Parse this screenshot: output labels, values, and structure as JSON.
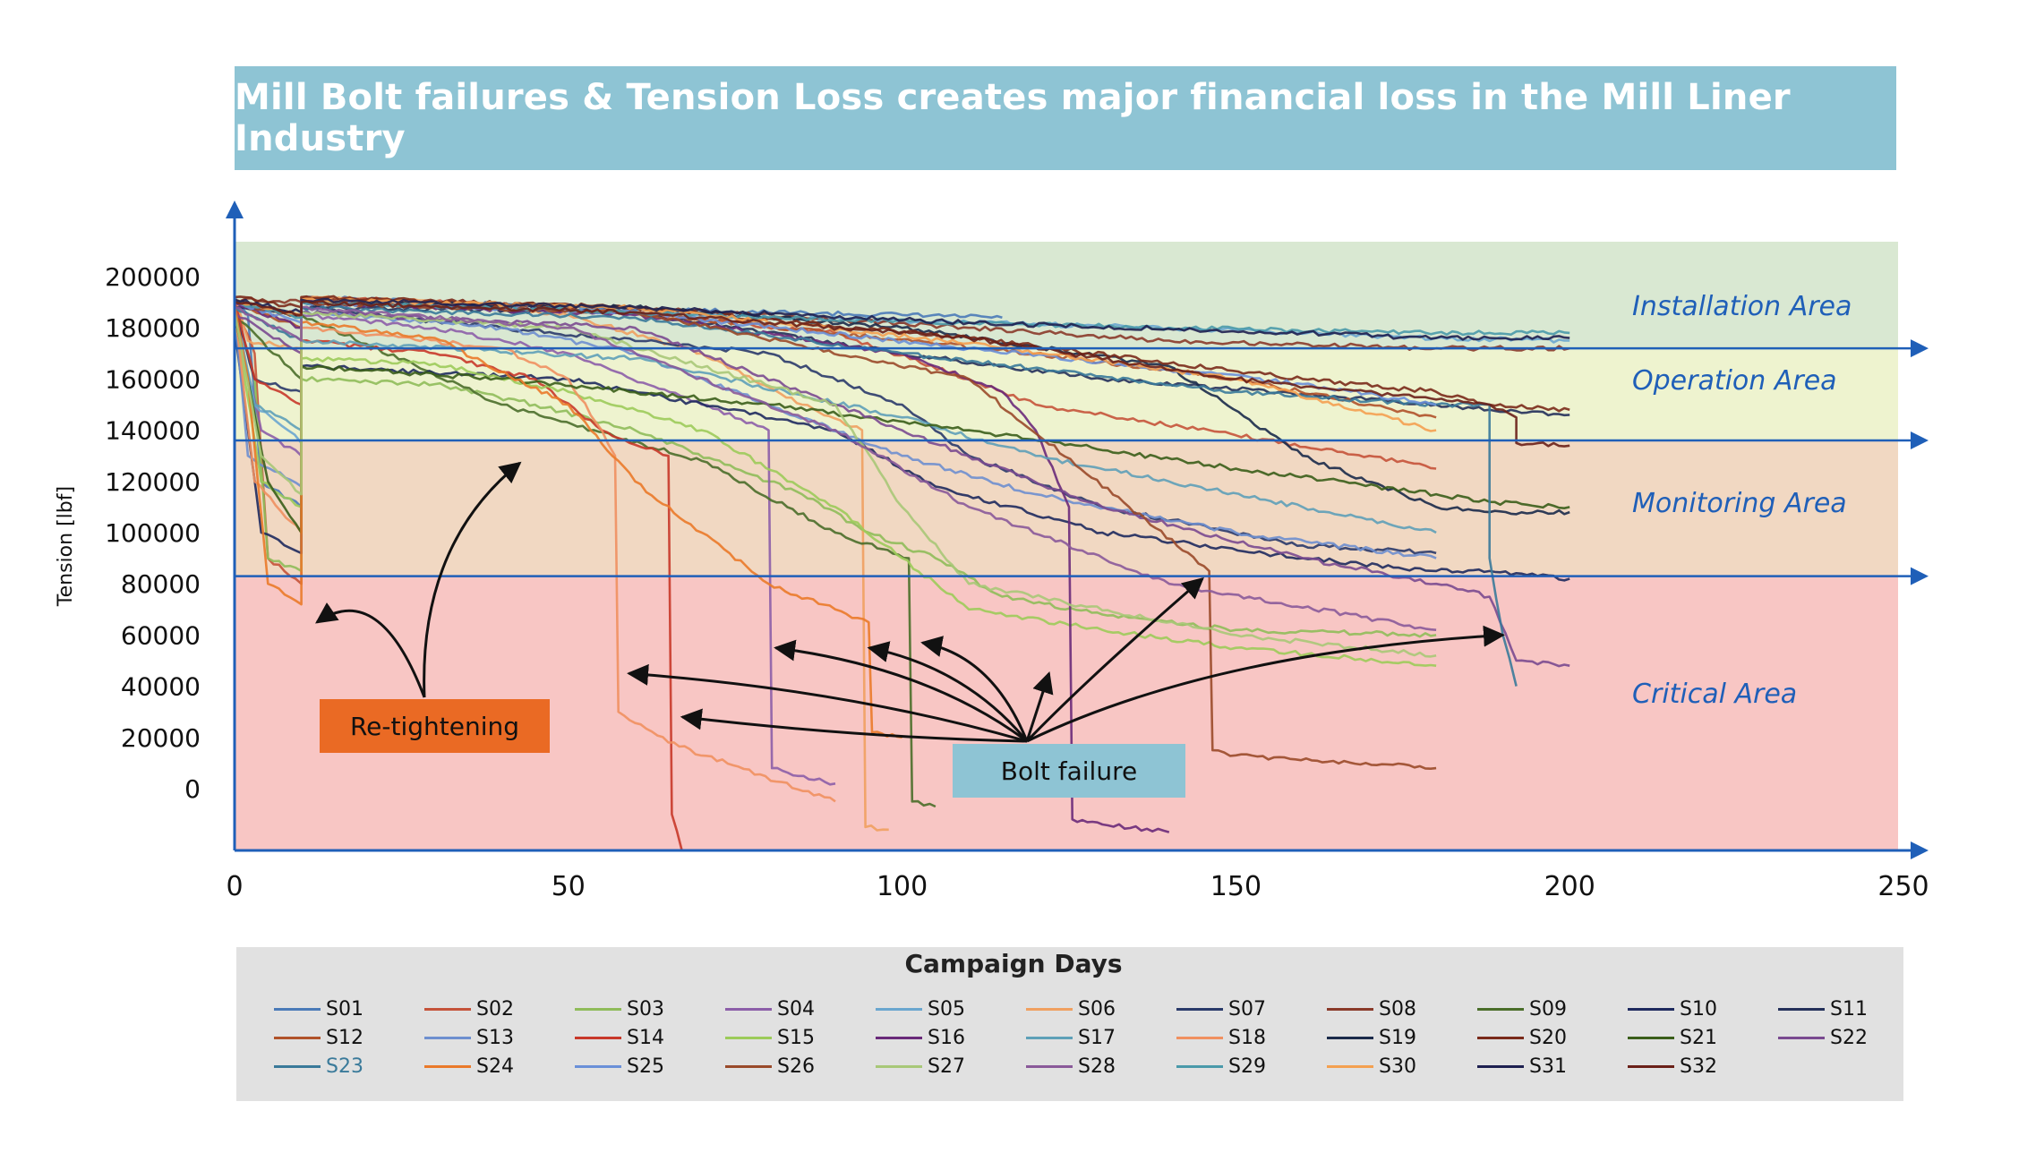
{
  "banner": {
    "title": "Mill Bolt failures & Tension Loss creates major financial loss in the Mill Liner Industry"
  },
  "callouts": {
    "retightening": "Re-tightening",
    "bolt_failure": "Bolt failure"
  },
  "chart_data": {
    "type": "line",
    "title": "Mill Bolt failures & Tension Loss creates major financial loss in the Mill Liner Industry",
    "xlabel": "Campaign Days",
    "ylabel": "Tension [lbf]",
    "xlim": [
      0,
      250
    ],
    "ylim": [
      -25000,
      215000
    ],
    "x_ticks": [
      0,
      50,
      100,
      150,
      200,
      250
    ],
    "x_tick_labels": [
      "0",
      "50",
      "100",
      "150",
      "200",
      "250"
    ],
    "y_ticks": [
      0,
      20000,
      40000,
      60000,
      80000,
      100000,
      120000,
      140000,
      160000,
      180000,
      200000
    ],
    "y_tick_labels": [
      "0",
      "20000",
      "40000",
      "60000",
      "80000",
      "100000",
      "120000",
      "140000",
      "160000",
      "180000",
      "200000"
    ],
    "areas": [
      {
        "name": "Installation Area",
        "from": 172000,
        "to": 215000,
        "color": "#d9e8d2"
      },
      {
        "name": "Operation Area",
        "from": 136000,
        "to": 172000,
        "color": "#eef3cf"
      },
      {
        "name": "Monitoring Area",
        "from": 83000,
        "to": 136000,
        "color": "#f1d8c2"
      },
      {
        "name": "Critical Area",
        "from": -25000,
        "to": 83000,
        "color": "#f8c6c4"
      }
    ],
    "thresholds": [
      172000,
      136000,
      83000
    ],
    "series": [
      {
        "name": "S01",
        "color": "#4a7ab8",
        "x": [
          0,
          2,
          4,
          10,
          10,
          40,
          80,
          100,
          115
        ],
        "y": [
          192000,
          185000,
          120000,
          110000,
          192000,
          189000,
          186000,
          185000,
          184000
        ]
      },
      {
        "name": "S02",
        "color": "#c5533a",
        "x": [
          0,
          3,
          5,
          10,
          10,
          50,
          90,
          110,
          120,
          150,
          170,
          180
        ],
        "y": [
          190000,
          170000,
          90000,
          80000,
          192000,
          188000,
          178000,
          160000,
          150000,
          138000,
          130000,
          125000
        ]
      },
      {
        "name": "S03",
        "color": "#8fbc5a",
        "x": [
          0,
          3,
          5,
          10,
          10,
          30,
          45,
          60,
          75,
          85,
          95,
          105,
          115,
          130,
          150,
          180
        ],
        "y": [
          188000,
          160000,
          90000,
          85000,
          160000,
          158000,
          150000,
          140000,
          125000,
          115000,
          100000,
          90000,
          75000,
          68000,
          62000,
          60000
        ]
      },
      {
        "name": "S04",
        "color": "#8c5ea8",
        "x": [
          0,
          4,
          10,
          10,
          30,
          50,
          70,
          80,
          80.5,
          90
        ],
        "y": [
          185000,
          140000,
          130000,
          185000,
          180000,
          170000,
          150000,
          140000,
          8000,
          2000
        ]
      },
      {
        "name": "S05",
        "color": "#6aa6cf",
        "x": [
          0,
          3,
          8,
          10,
          10,
          60,
          110,
          140,
          180,
          200
        ],
        "y": [
          190000,
          150000,
          140000,
          135000,
          190000,
          186000,
          182000,
          180000,
          176000,
          175000
        ]
      },
      {
        "name": "S06",
        "color": "#f0a060",
        "x": [
          0,
          2,
          10,
          10,
          30,
          50,
          70,
          85,
          94,
          94.5,
          98
        ],
        "y": [
          192000,
          175000,
          172000,
          192000,
          190000,
          185000,
          170000,
          150000,
          140000,
          -15000,
          -16000
        ]
      },
      {
        "name": "S07",
        "color": "#2a3a6a",
        "x": [
          0,
          3,
          10,
          10,
          40,
          80,
          100,
          110,
          130,
          160,
          180
        ],
        "y": [
          188000,
          160000,
          155000,
          188000,
          180000,
          170000,
          150000,
          130000,
          110000,
          95000,
          92000
        ]
      },
      {
        "name": "S08",
        "color": "#8a3a2a",
        "x": [
          0,
          10,
          10,
          60,
          110,
          140,
          180,
          188,
          188,
          200
        ],
        "y": [
          191000,
          190000,
          191000,
          188000,
          180000,
          175000,
          172000,
          172000,
          172000,
          172000
        ]
      },
      {
        "name": "S09",
        "color": "#4a6e2a",
        "x": [
          0,
          10,
          10,
          40,
          70,
          90,
          101,
          101.5,
          105
        ],
        "y": [
          185000,
          160000,
          185000,
          150000,
          128000,
          100000,
          90000,
          -5000,
          -7000
        ]
      },
      {
        "name": "S10",
        "color": "#1e2a5e",
        "x": [
          0,
          4,
          10,
          10,
          50,
          90,
          105,
          130,
          160,
          180,
          188,
          188,
          200
        ],
        "y": [
          180000,
          100000,
          92000,
          165000,
          160000,
          140000,
          118000,
          100000,
          90000,
          85000,
          85000,
          85000,
          82000
        ]
      },
      {
        "name": "S11",
        "color": "#24305a",
        "x": [
          0,
          10,
          10,
          60,
          100,
          130,
          180,
          188,
          188,
          200
        ],
        "y": [
          188000,
          185000,
          188000,
          186000,
          170000,
          160000,
          150000,
          148000,
          148000,
          146000
        ]
      },
      {
        "name": "S12",
        "color": "#b0522a",
        "x": [
          0,
          10,
          10,
          60,
          120,
          150,
          170,
          180
        ],
        "y": [
          190000,
          180000,
          190000,
          186000,
          170000,
          160000,
          150000,
          145000
        ]
      },
      {
        "name": "S13",
        "color": "#6e8fcf",
        "x": [
          0,
          2,
          10,
          10,
          40,
          60,
          80,
          100,
          120,
          150,
          180
        ],
        "y": [
          186000,
          130000,
          118000,
          186000,
          180000,
          170000,
          150000,
          130000,
          115000,
          100000,
          90000
        ]
      },
      {
        "name": "S14",
        "color": "#c8382a",
        "x": [
          0,
          3,
          10,
          10,
          30,
          45,
          55,
          65,
          65.5,
          67
        ],
        "y": [
          190000,
          160000,
          150000,
          175000,
          170000,
          160000,
          140000,
          130000,
          -10000,
          -25000
        ]
      },
      {
        "name": "S15",
        "color": "#9ccb5a",
        "x": [
          0,
          4,
          10,
          10,
          30,
          50,
          70,
          90,
          100,
          110,
          130,
          150,
          180
        ],
        "y": [
          185000,
          120000,
          110000,
          168000,
          166000,
          155000,
          140000,
          110000,
          90000,
          70000,
          62000,
          55000,
          48000
        ]
      },
      {
        "name": "S16",
        "color": "#6a2a7a",
        "x": [
          0,
          10,
          10,
          60,
          100,
          115,
          120,
          125,
          125.5,
          130,
          140
        ],
        "y": [
          190000,
          180000,
          190000,
          185000,
          170000,
          155000,
          140000,
          110000,
          -12000,
          -14000,
          -17000
        ]
      },
      {
        "name": "S17",
        "color": "#5ea0b8",
        "x": [
          0,
          3,
          10,
          10,
          60,
          100,
          120,
          140,
          160,
          180
        ],
        "y": [
          186000,
          150000,
          140000,
          175000,
          168000,
          145000,
          130000,
          120000,
          110000,
          100000
        ]
      },
      {
        "name": "S18",
        "color": "#f09060",
        "x": [
          0,
          3,
          10,
          10,
          40,
          50,
          55,
          57,
          57.5,
          65,
          90
        ],
        "y": [
          188000,
          120000,
          100000,
          180000,
          172000,
          160000,
          140000,
          130000,
          30000,
          18000,
          -5000
        ]
      },
      {
        "name": "S19",
        "color": "#1a2a4a",
        "x": [
          0,
          10,
          10,
          60,
          100,
          140,
          160,
          180,
          188,
          188,
          200
        ],
        "y": [
          190000,
          185000,
          190000,
          188000,
          180000,
          165000,
          130000,
          110000,
          108000,
          108000,
          108000
        ]
      },
      {
        "name": "S20",
        "color": "#7a2a1a",
        "x": [
          0,
          10,
          10,
          60,
          110,
          160,
          180,
          188,
          188,
          200
        ],
        "y": [
          192000,
          188000,
          192000,
          188000,
          176000,
          160000,
          155000,
          150000,
          150000,
          148000
        ]
      },
      {
        "name": "S21",
        "color": "#3a5e1a",
        "x": [
          0,
          5,
          10,
          10,
          40,
          80,
          110,
          150,
          180,
          188,
          188,
          200
        ],
        "y": [
          185000,
          120000,
          100000,
          165000,
          160000,
          150000,
          140000,
          125000,
          115000,
          112000,
          112000,
          110000
        ]
      },
      {
        "name": "S22",
        "color": "#7a4a90",
        "x": [
          0,
          10,
          10,
          60,
          100,
          130,
          160,
          180,
          188,
          192,
          200
        ],
        "y": [
          186000,
          170000,
          186000,
          180000,
          140000,
          110000,
          90000,
          80000,
          75000,
          50000,
          48000
        ]
      },
      {
        "name": "S23",
        "color": "#3a7a9a",
        "x": [
          0,
          10,
          10,
          60,
          100,
          150,
          180,
          188,
          188,
          190,
          192
        ],
        "y": [
          188000,
          175000,
          188000,
          184000,
          170000,
          155000,
          150000,
          150000,
          90000,
          60000,
          40000
        ]
      },
      {
        "name": "S24",
        "color": "#ea7a2a",
        "x": [
          0,
          2,
          5,
          10,
          10,
          30,
          50,
          60,
          70,
          80,
          90,
          95,
          95.5,
          100
        ],
        "y": [
          189000,
          160000,
          80000,
          72000,
          182000,
          176000,
          150000,
          120000,
          100000,
          80000,
          70000,
          65000,
          22000,
          20000
        ]
      },
      {
        "name": "S25",
        "color": "#6a90d8",
        "x": [
          0,
          10,
          10,
          60,
          110,
          160,
          180
        ],
        "y": [
          190000,
          182000,
          190000,
          186000,
          172000,
          158000,
          150000
        ]
      },
      {
        "name": "S26",
        "color": "#9a4a2a",
        "x": [
          0,
          10,
          10,
          60,
          110,
          146,
          146.5,
          150,
          180
        ],
        "y": [
          190000,
          184000,
          190000,
          186000,
          160000,
          85000,
          15000,
          13000,
          8000
        ]
      },
      {
        "name": "S27",
        "color": "#a8c878",
        "x": [
          0,
          4,
          10,
          10,
          50,
          90,
          100,
          110,
          150,
          180
        ],
        "y": [
          186000,
          130000,
          115000,
          186000,
          180000,
          150000,
          110000,
          80000,
          60000,
          52000
        ]
      },
      {
        "name": "S28",
        "color": "#8a5a9a",
        "x": [
          0,
          10,
          10,
          50,
          90,
          110,
          140,
          180
        ],
        "y": [
          188000,
          175000,
          188000,
          180000,
          140000,
          110000,
          80000,
          62000
        ]
      },
      {
        "name": "S29",
        "color": "#4a9aaa",
        "x": [
          0,
          10,
          10,
          40,
          80,
          110,
          140,
          180,
          188,
          188,
          200
        ],
        "y": [
          190000,
          184000,
          190000,
          188000,
          184000,
          182000,
          180000,
          178000,
          178000,
          178000,
          178000
        ]
      },
      {
        "name": "S30",
        "color": "#f4a050",
        "x": [
          0,
          10,
          10,
          60,
          110,
          150,
          180
        ],
        "y": [
          191000,
          185000,
          191000,
          188000,
          174000,
          160000,
          140000
        ]
      },
      {
        "name": "S31",
        "color": "#1e2050",
        "x": [
          0,
          10,
          10,
          60,
          110,
          160,
          180,
          188,
          188,
          200
        ],
        "y": [
          191000,
          186000,
          191000,
          188000,
          182000,
          178000,
          176000,
          176000,
          176000,
          176000
        ]
      },
      {
        "name": "S32",
        "color": "#6a2018",
        "x": [
          0,
          10,
          10,
          60,
          110,
          150,
          180,
          188,
          188,
          190,
          192,
          192,
          200
        ],
        "y": [
          190000,
          185000,
          190000,
          186000,
          176000,
          160000,
          152000,
          150000,
          150000,
          148000,
          145000,
          135000,
          134000
        ]
      }
    ],
    "annotations": [
      {
        "text": "Re-tightening",
        "points_to": [
          [
            11,
            65000
          ],
          [
            43,
            130000
          ]
        ]
      },
      {
        "text": "Bolt failure",
        "points_to": [
          [
            58,
            45000
          ],
          [
            66,
            28000
          ],
          [
            80,
            55000
          ],
          [
            94,
            55000
          ],
          [
            102,
            57000
          ],
          [
            122,
            45000
          ],
          [
            145,
            82000
          ],
          [
            190,
            60000
          ]
        ]
      }
    ]
  },
  "legend": {
    "title": "Campaign Days",
    "items": [
      "S01",
      "S02",
      "S03",
      "S04",
      "S05",
      "S06",
      "S07",
      "S08",
      "S09",
      "S10",
      "S11",
      "S12",
      "S13",
      "S14",
      "S15",
      "S16",
      "S17",
      "S18",
      "S19",
      "S20",
      "S21",
      "S22",
      "S23",
      "S24",
      "S25",
      "S26",
      "S27",
      "S28",
      "S29",
      "S30",
      "S31",
      "S32"
    ]
  }
}
